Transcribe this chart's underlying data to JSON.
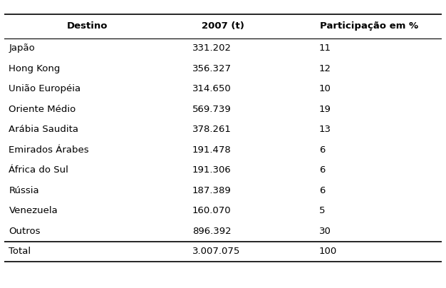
{
  "headers": [
    "Destino",
    "2007 (t)",
    "Participação em %"
  ],
  "rows": [
    [
      "Japão",
      "331.202",
      "11"
    ],
    [
      "Hong Kong",
      "356.327",
      "12"
    ],
    [
      "União Européia",
      "314.650",
      "10"
    ],
    [
      "Oriente Médio",
      "569.739",
      "19"
    ],
    [
      "Arábia Saudita",
      "378.261",
      "13"
    ],
    [
      "Emirados Árabes",
      "191.478",
      "6"
    ],
    [
      "África do Sul",
      "191.306",
      "6"
    ],
    [
      "Rússia",
      "187.389",
      "6"
    ],
    [
      "Venezuela",
      "160.070",
      "5"
    ],
    [
      "Outros",
      "896.392",
      "30"
    ]
  ],
  "total_row": [
    "Total",
    "3.007.075",
    "100"
  ],
  "header_fontsize": 9.5,
  "body_fontsize": 9.5,
  "bg_color": "#ffffff",
  "text_color": "#000000",
  "line_color": "#000000",
  "figsize": [
    6.26,
    4.04
  ],
  "dpi": 100
}
